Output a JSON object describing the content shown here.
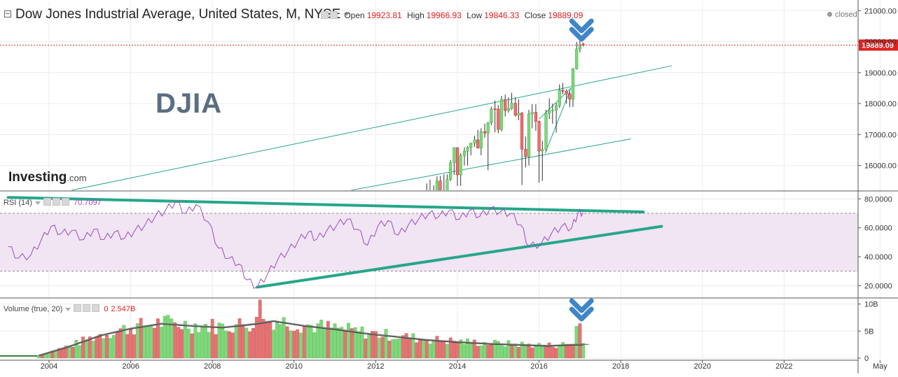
{
  "header": {
    "title": "Dow Jones Industrial Average, United States, M, NYSE",
    "open_label": "Open",
    "open_value": "19923.81",
    "high_label": "High",
    "high_value": "19966.93",
    "low_label": "Low",
    "low_value": "19846.33",
    "close_label": "Close",
    "close_value": "19889.09",
    "status": "closed"
  },
  "annotation_text": "DJIA",
  "watermark": {
    "brand": "Investing",
    "suffix": ".com"
  },
  "rsi_legend": {
    "label": "RSI (14)",
    "value": "70.7097"
  },
  "volume_legend": {
    "label": "Volume (true, 20)",
    "value_zero": "0",
    "value": "2.547B"
  },
  "colors": {
    "up": "#7fd87a",
    "down": "#e57373",
    "trendline": "#26a68a",
    "rsi": "#9b4dbd",
    "rsi_band": "#f1e4f3",
    "arrow": "#3f86c8",
    "price_tag": "#e02020"
  },
  "chart_data": [
    {
      "type": "candlestick",
      "price_axis": {
        "min": 15200,
        "max": 21300,
        "ticks": [
          "16000.00",
          "17000.00",
          "18000.00",
          "19000.00",
          "20000.00",
          "21000.00"
        ]
      },
      "last_price": 19889.09,
      "last_price_label": "19889.09",
      "candles": [
        {
          "t": 2013.25,
          "o": 14840,
          "h": 15420,
          "l": 14700,
          "c": 14820
        },
        {
          "t": 2013.33,
          "o": 14820,
          "h": 15540,
          "l": 14740,
          "c": 15115
        },
        {
          "t": 2013.42,
          "o": 15115,
          "h": 15360,
          "l": 14550,
          "c": 14910
        },
        {
          "t": 2013.5,
          "o": 14910,
          "h": 15650,
          "l": 14880,
          "c": 15500
        },
        {
          "t": 2013.58,
          "o": 15500,
          "h": 15660,
          "l": 14760,
          "c": 14810
        },
        {
          "t": 2013.67,
          "o": 14810,
          "h": 15710,
          "l": 14780,
          "c": 15130
        },
        {
          "t": 2013.75,
          "o": 15130,
          "h": 15710,
          "l": 14720,
          "c": 15545
        },
        {
          "t": 2013.83,
          "o": 15545,
          "h": 16180,
          "l": 15500,
          "c": 16086
        },
        {
          "t": 2013.92,
          "o": 16086,
          "h": 16590,
          "l": 15700,
          "c": 16577
        },
        {
          "t": 2014.0,
          "o": 16577,
          "h": 16590,
          "l": 15340,
          "c": 15699
        },
        {
          "t": 2014.08,
          "o": 15699,
          "h": 16400,
          "l": 15340,
          "c": 16322
        },
        {
          "t": 2014.17,
          "o": 16322,
          "h": 16590,
          "l": 16000,
          "c": 16458
        },
        {
          "t": 2014.25,
          "o": 16458,
          "h": 16630,
          "l": 16000,
          "c": 16581
        },
        {
          "t": 2014.33,
          "o": 16581,
          "h": 16740,
          "l": 16330,
          "c": 16717
        },
        {
          "t": 2014.42,
          "o": 16717,
          "h": 16960,
          "l": 16600,
          "c": 16827
        },
        {
          "t": 2014.5,
          "o": 16827,
          "h": 17150,
          "l": 16550,
          "c": 16563
        },
        {
          "t": 2014.58,
          "o": 16563,
          "h": 17200,
          "l": 16330,
          "c": 17098
        },
        {
          "t": 2014.67,
          "o": 17098,
          "h": 17350,
          "l": 16900,
          "c": 17043
        },
        {
          "t": 2014.75,
          "o": 17043,
          "h": 17400,
          "l": 15850,
          "c": 17391
        },
        {
          "t": 2014.83,
          "o": 17391,
          "h": 17900,
          "l": 17300,
          "c": 17828
        },
        {
          "t": 2014.92,
          "o": 17828,
          "h": 18100,
          "l": 17070,
          "c": 17823
        },
        {
          "t": 2015.0,
          "o": 17823,
          "h": 17950,
          "l": 17040,
          "c": 17165
        },
        {
          "t": 2015.08,
          "o": 17165,
          "h": 18250,
          "l": 17100,
          "c": 18133
        },
        {
          "t": 2015.17,
          "o": 18133,
          "h": 18290,
          "l": 17580,
          "c": 17776
        },
        {
          "t": 2015.25,
          "o": 17776,
          "h": 18200,
          "l": 17700,
          "c": 17841
        },
        {
          "t": 2015.33,
          "o": 17841,
          "h": 18350,
          "l": 17800,
          "c": 18011
        },
        {
          "t": 2015.42,
          "o": 18011,
          "h": 18200,
          "l": 17580,
          "c": 17620
        },
        {
          "t": 2015.5,
          "o": 17620,
          "h": 18140,
          "l": 17460,
          "c": 17690
        },
        {
          "t": 2015.58,
          "o": 17690,
          "h": 17730,
          "l": 15370,
          "c": 16528
        },
        {
          "t": 2015.67,
          "o": 16528,
          "h": 16930,
          "l": 15940,
          "c": 16285
        },
        {
          "t": 2015.75,
          "o": 16285,
          "h": 17800,
          "l": 16000,
          "c": 17664
        },
        {
          "t": 2015.83,
          "o": 17664,
          "h": 17980,
          "l": 17200,
          "c": 17720
        },
        {
          "t": 2015.92,
          "o": 17720,
          "h": 17980,
          "l": 17120,
          "c": 17425
        },
        {
          "t": 2016.0,
          "o": 17425,
          "h": 17450,
          "l": 15450,
          "c": 16466
        },
        {
          "t": 2016.08,
          "o": 16466,
          "h": 16800,
          "l": 15500,
          "c": 16517
        },
        {
          "t": 2016.17,
          "o": 16517,
          "h": 17800,
          "l": 16450,
          "c": 17685
        },
        {
          "t": 2016.25,
          "o": 17685,
          "h": 18170,
          "l": 17500,
          "c": 17774
        },
        {
          "t": 2016.33,
          "o": 17774,
          "h": 18000,
          "l": 17350,
          "c": 17787
        },
        {
          "t": 2016.42,
          "o": 17787,
          "h": 18020,
          "l": 17060,
          "c": 17930
        },
        {
          "t": 2016.5,
          "o": 17930,
          "h": 18620,
          "l": 17860,
          "c": 18432
        },
        {
          "t": 2016.58,
          "o": 18432,
          "h": 18670,
          "l": 18300,
          "c": 18401
        },
        {
          "t": 2016.67,
          "o": 18401,
          "h": 18460,
          "l": 18000,
          "c": 18308
        },
        {
          "t": 2016.75,
          "o": 18308,
          "h": 18400,
          "l": 17880,
          "c": 18142
        },
        {
          "t": 2016.83,
          "o": 18142,
          "h": 19150,
          "l": 17890,
          "c": 19124
        },
        {
          "t": 2016.92,
          "o": 19124,
          "h": 19990,
          "l": 19100,
          "c": 19763
        },
        {
          "t": 2017.0,
          "o": 19763,
          "h": 20120,
          "l": 19650,
          "c": 19864
        },
        {
          "t": 2017.08,
          "o": 19923.81,
          "h": 19966.93,
          "l": 19846.33,
          "c": 19889.09
        }
      ],
      "trendlines": [
        {
          "t1": 2004.55,
          "p1": 15200,
          "t2": 2019.25,
          "p2": 19220
        },
        {
          "t1": 2011.4,
          "p1": 15200,
          "t2": 2018.25,
          "p2": 16860
        },
        {
          "t1": 2016.15,
          "p1": 16400,
          "t2": 2016.78,
          "p2": 18500
        },
        {
          "t1": 2016.0,
          "p1": 17500,
          "t2": 2016.78,
          "p2": 18500
        }
      ]
    },
    {
      "type": "line",
      "name": "RSI (14)",
      "y_axis": {
        "min": 12,
        "max": 85,
        "ticks": [
          "20.0000",
          "40.0000",
          "60.0000",
          "80.0000"
        ]
      },
      "band": [
        30,
        70
      ],
      "points": [
        [
          2003.0,
          47
        ],
        [
          2003.25,
          39
        ],
        [
          2003.55,
          41
        ],
        [
          2003.8,
          51
        ],
        [
          2004.05,
          61
        ],
        [
          2004.3,
          56
        ],
        [
          2004.55,
          58
        ],
        [
          2004.85,
          52
        ],
        [
          2005.1,
          59
        ],
        [
          2005.35,
          52
        ],
        [
          2005.6,
          57
        ],
        [
          2005.85,
          53
        ],
        [
          2006.1,
          58
        ],
        [
          2006.35,
          62
        ],
        [
          2006.6,
          68
        ],
        [
          2006.85,
          72
        ],
        [
          2007.1,
          78
        ],
        [
          2007.35,
          70
        ],
        [
          2007.6,
          76
        ],
        [
          2007.9,
          64
        ],
        [
          2008.15,
          46
        ],
        [
          2008.4,
          39
        ],
        [
          2008.65,
          35
        ],
        [
          2008.85,
          24
        ],
        [
          2009.1,
          19
        ],
        [
          2009.35,
          28
        ],
        [
          2009.6,
          38
        ],
        [
          2009.85,
          44
        ],
        [
          2010.1,
          51
        ],
        [
          2010.35,
          57
        ],
        [
          2010.55,
          52
        ],
        [
          2010.8,
          58
        ],
        [
          2011.05,
          62
        ],
        [
          2011.3,
          66
        ],
        [
          2011.55,
          59
        ],
        [
          2011.8,
          48
        ],
        [
          2012.05,
          61
        ],
        [
          2012.3,
          65
        ],
        [
          2012.55,
          55
        ],
        [
          2012.8,
          62
        ],
        [
          2013.05,
          66
        ],
        [
          2013.3,
          70
        ],
        [
          2013.55,
          68
        ],
        [
          2013.8,
          72
        ],
        [
          2014.05,
          66
        ],
        [
          2014.3,
          72
        ],
        [
          2014.55,
          68
        ],
        [
          2014.8,
          73
        ],
        [
          2015.05,
          71
        ],
        [
          2015.3,
          70
        ],
        [
          2015.55,
          62
        ],
        [
          2015.75,
          47
        ],
        [
          2016.05,
          49
        ],
        [
          2016.3,
          56
        ],
        [
          2016.55,
          61
        ],
        [
          2016.8,
          60
        ],
        [
          2016.95,
          70
        ],
        [
          2017.08,
          70.7097
        ]
      ],
      "trendlines": [
        {
          "t1": 2003.0,
          "v1": 81,
          "t2": 2018.55,
          "v2": 71
        },
        {
          "t1": 2009.1,
          "v1": 19,
          "t2": 2019.0,
          "v2": 61
        }
      ]
    },
    {
      "type": "bar",
      "name": "Volume (true, 20)",
      "y_axis": {
        "min": 0,
        "max": 11,
        "ticks": [
          "0",
          "5B",
          "10B"
        ]
      },
      "zero_until": 2003.75,
      "ma_points": [
        [
          2003.75,
          0.5
        ],
        [
          2004.5,
          2.2
        ],
        [
          2005.25,
          4.2
        ],
        [
          2006.0,
          5.5
        ],
        [
          2006.75,
          6.4
        ],
        [
          2007.5,
          6.0
        ],
        [
          2008.25,
          5.7
        ],
        [
          2009.0,
          6.3
        ],
        [
          2009.5,
          6.9
        ],
        [
          2010.25,
          6.0
        ],
        [
          2011.0,
          5.4
        ],
        [
          2011.75,
          4.6
        ],
        [
          2012.5,
          4.0
        ],
        [
          2013.25,
          3.4
        ],
        [
          2014.0,
          3.0
        ],
        [
          2014.75,
          2.7
        ],
        [
          2015.5,
          2.5
        ],
        [
          2016.25,
          2.3
        ],
        [
          2016.75,
          2.5
        ],
        [
          2017.08,
          2.55
        ]
      ],
      "last_volume": 2.547,
      "spikes": [
        {
          "t": 2009.2,
          "v": 10.8
        },
        {
          "t": 2016.92,
          "v": 5.9
        },
        {
          "t": 2017.0,
          "v": 6.4
        }
      ]
    }
  ],
  "x_axis": {
    "ticks": [
      {
        "t": 2004,
        "label": "2004"
      },
      {
        "t": 2006,
        "label": "2006"
      },
      {
        "t": 2008,
        "label": "2008"
      },
      {
        "t": 2010,
        "label": "2010"
      },
      {
        "t": 2012,
        "label": "2012"
      },
      {
        "t": 2014,
        "label": "2014"
      },
      {
        "t": 2016,
        "label": "2016"
      },
      {
        "t": 2018,
        "label": "2018"
      },
      {
        "t": 2020,
        "label": "2020"
      },
      {
        "t": 2022,
        "label": "2022"
      },
      {
        "t": 2024.35,
        "label": "May"
      }
    ]
  }
}
